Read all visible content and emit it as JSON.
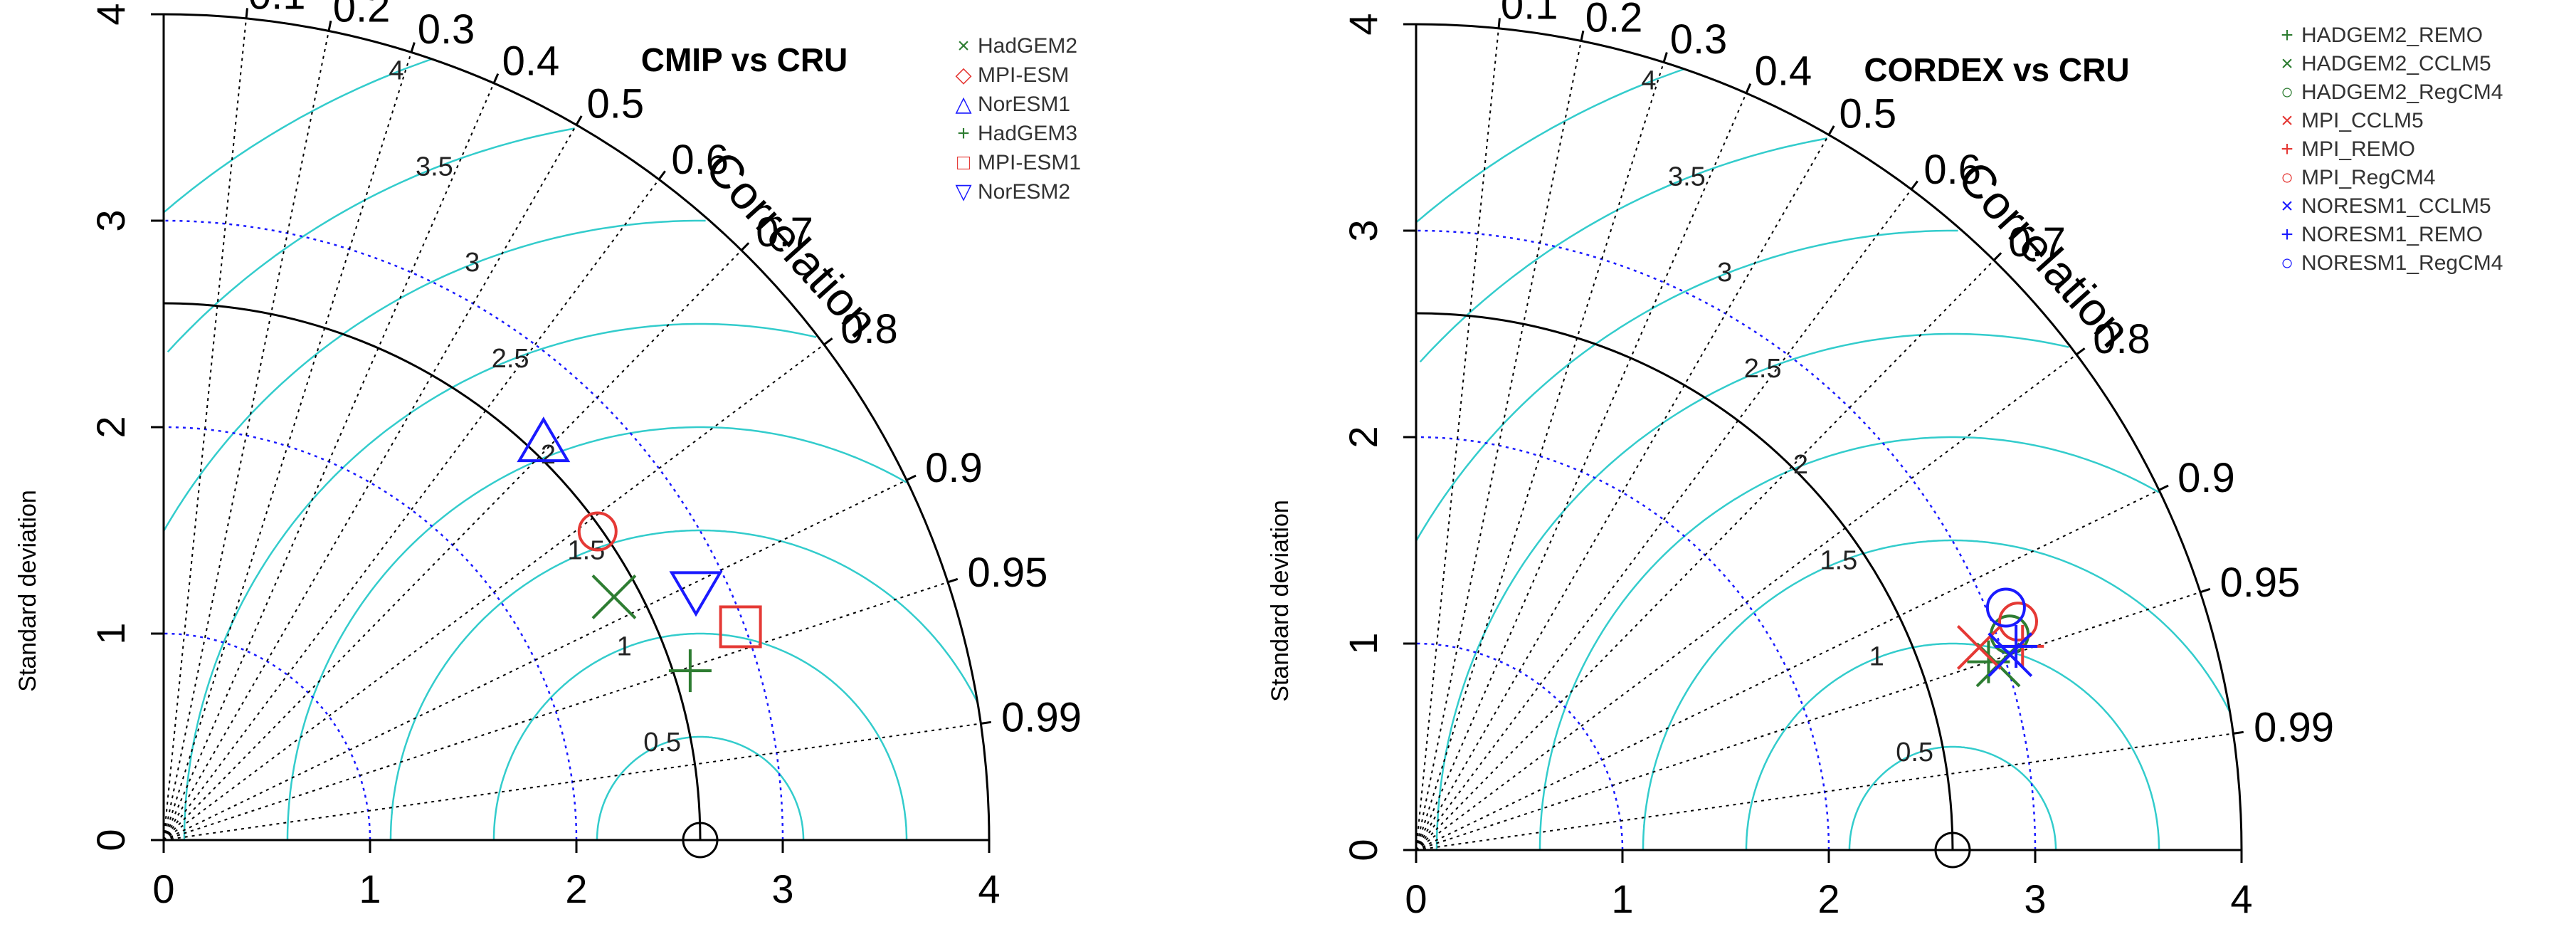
{
  "chart_data": [
    {
      "type": "taylor",
      "title": "CMIP vs CRU",
      "ylabel": "Standard deviation",
      "reference": {
        "sd": 2.6,
        "corr": 1.0
      },
      "sd_max": 4,
      "x_ticks": [
        "0",
        "1",
        "2",
        "3",
        "4"
      ],
      "y_ticks": [
        "0",
        "1",
        "2",
        "3",
        "4"
      ],
      "correlation_label": "Correlation",
      "correlation_ticks": [
        "0.1",
        "0.2",
        "0.3",
        "0.4",
        "0.5",
        "0.6",
        "0.7",
        "0.8",
        "0.9",
        "0.95",
        "0.99"
      ],
      "rmsd_labels": [
        "0.5",
        "1",
        "1.5",
        "2",
        "2.5",
        "3",
        "3.5",
        "4"
      ],
      "series": [
        {
          "name": "HadGEM2",
          "marker": "x",
          "color": "#2e7d32",
          "sd": 2.48,
          "corr": 0.88
        },
        {
          "name": "MPI-ESM",
          "marker": "circle",
          "color": "#e53935",
          "sd": 2.58,
          "corr": 0.815
        },
        {
          "name": "NorESM1",
          "marker": "triangle-up",
          "color": "#1a1aff",
          "sd": 2.66,
          "corr": 0.692
        },
        {
          "name": "HadGEM3",
          "marker": "plus",
          "color": "#2e7d32",
          "sd": 2.68,
          "corr": 0.952
        },
        {
          "name": "MPI-ESM1",
          "marker": "square",
          "color": "#e53935",
          "sd": 2.98,
          "corr": 0.938
        },
        {
          "name": "NorESM2",
          "marker": "triangle-down",
          "color": "#1a1aff",
          "sd": 2.85,
          "corr": 0.905
        }
      ],
      "legend_symbols": [
        "×",
        "◇",
        "△",
        "+",
        "□",
        "▽"
      ]
    },
    {
      "type": "taylor",
      "title": "CORDEX vs CRU",
      "ylabel": "Standard deviation",
      "reference": {
        "sd": 2.6,
        "corr": 1.0
      },
      "sd_max": 4,
      "x_ticks": [
        "0",
        "1",
        "2",
        "3",
        "4"
      ],
      "y_ticks": [
        "0",
        "1",
        "2",
        "3",
        "4"
      ],
      "correlation_label": "Correlation",
      "correlation_ticks": [
        "0.1",
        "0.2",
        "0.3",
        "0.4",
        "0.5",
        "0.6",
        "0.7",
        "0.8",
        "0.9",
        "0.95",
        "0.99"
      ],
      "rmsd_labels": [
        "0.5",
        "1",
        "1.5",
        "2",
        "2.5",
        "3",
        "3.5",
        "4"
      ],
      "series": [
        {
          "name": "HADGEM2_REMO",
          "marker": "plus",
          "color": "#2e7d32",
          "sd": 2.92,
          "corr": 0.95
        },
        {
          "name": "HADGEM2_CCLM5",
          "marker": "x",
          "color": "#2e7d32",
          "sd": 2.96,
          "corr": 0.953
        },
        {
          "name": "HADGEM2_RegCM4",
          "marker": "circle",
          "color": "#2e7d32",
          "sd": 3.06,
          "corr": 0.94
        },
        {
          "name": "MPI_CCLM5",
          "marker": "x",
          "color": "#e53935",
          "sd": 2.9,
          "corr": 0.941
        },
        {
          "name": "MPI_REMO",
          "marker": "plus",
          "color": "#e53935",
          "sd": 3.1,
          "corr": 0.948
        },
        {
          "name": "MPI_RegCM4",
          "marker": "circle",
          "color": "#e53935",
          "sd": 3.12,
          "corr": 0.935
        },
        {
          "name": "NORESM1_CCLM5",
          "marker": "x",
          "color": "#1a1aff",
          "sd": 3.03,
          "corr": 0.95
        },
        {
          "name": "NORESM1_REMO",
          "marker": "plus",
          "color": "#1a1aff",
          "sd": 3.07,
          "corr": 0.947
        },
        {
          "name": "NORESM1_RegCM4",
          "marker": "circle",
          "color": "#1a1aff",
          "sd": 3.09,
          "corr": 0.925
        }
      ],
      "legend_symbols": [
        "+",
        "×",
        "○",
        "×",
        "+",
        "○",
        "×",
        "+",
        "○"
      ]
    }
  ],
  "colors": {
    "rmsd": "#33cccc",
    "sd_dotted": "#1a1aff",
    "ref_arc": "#000000",
    "axis": "#000000"
  }
}
